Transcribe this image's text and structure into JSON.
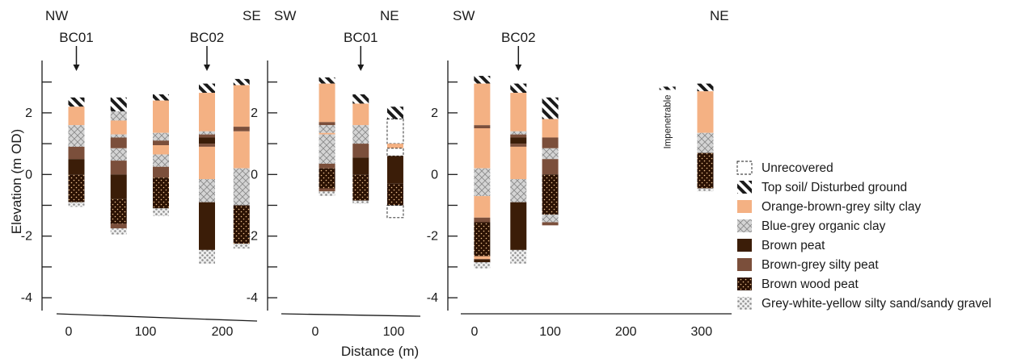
{
  "figure": {
    "y_axis_title": "Elevation (m OD)",
    "x_axis_title": "Distance (m)"
  },
  "colors": {
    "top_soil": "#222222",
    "silty_clay": "#f4b183",
    "organic_clay": "#d0d0d0",
    "brown_peat": "#3b1d08",
    "silty_peat": "#7b4f3b",
    "wood_peat": "#2b1204",
    "gravel": "#c8c8c8"
  },
  "legend": [
    {
      "key": "unrecovered",
      "label": "Unrecovered"
    },
    {
      "key": "top_soil",
      "label": "Top soil/ Disturbed ground"
    },
    {
      "key": "silty_clay",
      "label": "Orange-brown-grey silty clay"
    },
    {
      "key": "organic_clay",
      "label": "Blue-grey organic clay"
    },
    {
      "key": "brown_peat",
      "label": "Brown peat"
    },
    {
      "key": "silty_peat",
      "label": "Brown-grey silty peat"
    },
    {
      "key": "wood_peat",
      "label": "Brown wood peat"
    },
    {
      "key": "gravel",
      "label": "Grey-white-yellow silty sand/sandy gravel"
    }
  ],
  "panels": [
    {
      "left_label": "NW",
      "right_label": "SE",
      "y_tick_labels": [
        "2",
        "0",
        "-2",
        "-4"
      ],
      "x_tick_labels": [
        "0",
        "100",
        "200"
      ],
      "markers": [
        {
          "label": "BC01",
          "distance": 10
        },
        {
          "label": "BC02",
          "distance": 180
        }
      ],
      "columns": [
        {
          "distance": 10,
          "layers": [
            {
              "type": "top_soil",
              "top": 2.5,
              "bottom": 2.2
            },
            {
              "type": "silty_clay",
              "top": 2.2,
              "bottom": 1.6
            },
            {
              "type": "organic_clay",
              "top": 1.6,
              "bottom": 0.9
            },
            {
              "type": "silty_peat",
              "top": 0.9,
              "bottom": 0.5
            },
            {
              "type": "brown_peat",
              "top": 0.5,
              "bottom": 0.0
            },
            {
              "type": "wood_peat",
              "top": 0.0,
              "bottom": -0.9
            },
            {
              "type": "gravel",
              "top": -0.9,
              "bottom": -1.05
            }
          ]
        },
        {
          "distance": 65,
          "layers": [
            {
              "type": "top_soil",
              "top": 2.5,
              "bottom": 2.05
            },
            {
              "type": "organic_clay",
              "top": 2.05,
              "bottom": 1.75
            },
            {
              "type": "silty_clay",
              "top": 1.75,
              "bottom": 1.3
            },
            {
              "type": "organic_clay",
              "top": 1.3,
              "bottom": 1.2
            },
            {
              "type": "silty_peat",
              "top": 1.2,
              "bottom": 0.85
            },
            {
              "type": "organic_clay",
              "top": 0.85,
              "bottom": 0.45
            },
            {
              "type": "silty_peat",
              "top": 0.45,
              "bottom": 0.0
            },
            {
              "type": "brown_peat",
              "top": 0.0,
              "bottom": -0.8
            },
            {
              "type": "wood_peat",
              "top": -0.8,
              "bottom": -1.6
            },
            {
              "type": "silty_peat",
              "top": -1.6,
              "bottom": -1.75
            },
            {
              "type": "gravel",
              "top": -1.75,
              "bottom": -1.95
            }
          ]
        },
        {
          "distance": 120,
          "layers": [
            {
              "type": "top_soil",
              "top": 2.6,
              "bottom": 2.4
            },
            {
              "type": "silty_clay",
              "top": 2.4,
              "bottom": 1.35
            },
            {
              "type": "organic_clay",
              "top": 1.35,
              "bottom": 1.1
            },
            {
              "type": "silty_peat",
              "top": 1.1,
              "bottom": 0.95
            },
            {
              "type": "silty_clay",
              "top": 0.95,
              "bottom": 0.65
            },
            {
              "type": "organic_clay",
              "top": 0.65,
              "bottom": 0.25
            },
            {
              "type": "silty_peat",
              "top": 0.25,
              "bottom": -0.1
            },
            {
              "type": "wood_peat",
              "top": -0.1,
              "bottom": -1.1
            },
            {
              "type": "gravel",
              "top": -1.1,
              "bottom": -1.35
            }
          ]
        },
        {
          "distance": 180,
          "layers": [
            {
              "type": "top_soil",
              "top": 2.95,
              "bottom": 2.65
            },
            {
              "type": "silty_clay",
              "top": 2.65,
              "bottom": 1.4
            },
            {
              "type": "organic_clay",
              "top": 1.4,
              "bottom": 1.3
            },
            {
              "type": "silty_peat",
              "top": 1.3,
              "bottom": 1.2
            },
            {
              "type": "brown_peat",
              "top": 1.2,
              "bottom": 1.0
            },
            {
              "type": "silty_peat",
              "top": 1.0,
              "bottom": 0.9
            },
            {
              "type": "silty_clay",
              "top": 0.9,
              "bottom": -0.15
            },
            {
              "type": "organic_clay",
              "top": -0.15,
              "bottom": -0.9
            },
            {
              "type": "brown_peat",
              "top": -0.9,
              "bottom": -2.45
            },
            {
              "type": "gravel",
              "top": -2.45,
              "bottom": -2.9
            }
          ]
        },
        {
          "distance": 225,
          "layers": [
            {
              "type": "top_soil",
              "top": 3.1,
              "bottom": 2.9
            },
            {
              "type": "silty_clay",
              "top": 2.9,
              "bottom": 1.55
            },
            {
              "type": "silty_peat",
              "top": 1.55,
              "bottom": 1.4
            },
            {
              "type": "silty_clay",
              "top": 1.4,
              "bottom": 0.2
            },
            {
              "type": "organic_clay",
              "top": 0.2,
              "bottom": -1.0
            },
            {
              "type": "wood_peat",
              "top": -1.0,
              "bottom": -2.25
            },
            {
              "type": "gravel",
              "top": -2.25,
              "bottom": -2.4
            }
          ]
        }
      ]
    },
    {
      "left_label": "SW",
      "right_label": "NE",
      "y_tick_labels": [
        "2",
        "0",
        "-2",
        "-4"
      ],
      "x_tick_labels": [
        "0",
        "100"
      ],
      "markers": [
        {
          "label": "BC01",
          "distance": 58
        }
      ],
      "columns": [
        {
          "distance": 15,
          "layers": [
            {
              "type": "top_soil",
              "top": 3.15,
              "bottom": 2.95
            },
            {
              "type": "silty_clay",
              "top": 2.95,
              "bottom": 1.7
            },
            {
              "type": "silty_peat",
              "top": 1.7,
              "bottom": 1.6
            },
            {
              "type": "organic_clay",
              "top": 1.6,
              "bottom": 1.35
            },
            {
              "type": "silty_clay",
              "top": 1.35,
              "bottom": 1.3
            },
            {
              "type": "organic_clay",
              "top": 1.3,
              "bottom": 0.35
            },
            {
              "type": "silty_peat",
              "top": 0.35,
              "bottom": 0.2
            },
            {
              "type": "wood_peat",
              "top": 0.2,
              "bottom": -0.45
            },
            {
              "type": "silty_peat",
              "top": -0.45,
              "bottom": -0.55
            },
            {
              "type": "gravel",
              "top": -0.55,
              "bottom": -0.7
            }
          ]
        },
        {
          "distance": 58,
          "layers": [
            {
              "type": "top_soil",
              "top": 2.6,
              "bottom": 2.3
            },
            {
              "type": "silty_clay",
              "top": 2.3,
              "bottom": 1.6
            },
            {
              "type": "organic_clay",
              "top": 1.6,
              "bottom": 1.0
            },
            {
              "type": "silty_peat",
              "top": 1.0,
              "bottom": 0.55
            },
            {
              "type": "brown_peat",
              "top": 0.55,
              "bottom": 0.0
            },
            {
              "type": "wood_peat",
              "top": 0.0,
              "bottom": -0.85
            },
            {
              "type": "gravel",
              "top": -0.85,
              "bottom": -0.95
            }
          ]
        },
        {
          "distance": 102,
          "layers": [
            {
              "type": "top_soil",
              "top": 2.2,
              "bottom": 1.8
            },
            {
              "type": "unrecovered",
              "top": 1.8,
              "bottom": 1.0
            },
            {
              "type": "silty_clay",
              "top": 1.0,
              "bottom": 0.85
            },
            {
              "type": "unrecovered",
              "top": 0.85,
              "bottom": 0.6
            },
            {
              "type": "brown_peat",
              "top": 0.6,
              "bottom": -0.3
            },
            {
              "type": "wood_peat",
              "top": -0.3,
              "bottom": -1.0
            },
            {
              "type": "unrecovered",
              "top": -1.0,
              "bottom": -1.4
            }
          ]
        }
      ]
    },
    {
      "left_label": "SW",
      "right_label": "NE",
      "y_tick_labels": [
        "2",
        "0",
        "-2",
        "-4"
      ],
      "x_tick_labels": [
        "0",
        "100",
        "200",
        "300"
      ],
      "markers": [
        {
          "label": "BC02",
          "distance": 58
        }
      ],
      "impenetrable": {
        "label": "Impenetrable",
        "distance": 255,
        "top": 2.85
      },
      "columns": [
        {
          "distance": 10,
          "layers": [
            {
              "type": "top_soil",
              "top": 3.2,
              "bottom": 2.95
            },
            {
              "type": "silty_clay",
              "top": 2.95,
              "bottom": 1.6
            },
            {
              "type": "silty_peat",
              "top": 1.6,
              "bottom": 1.5
            },
            {
              "type": "silty_clay",
              "top": 1.5,
              "bottom": 0.2
            },
            {
              "type": "organic_clay",
              "top": 0.2,
              "bottom": -0.7
            },
            {
              "type": "silty_clay",
              "top": -0.7,
              "bottom": -1.4
            },
            {
              "type": "silty_peat",
              "top": -1.4,
              "bottom": -1.55
            },
            {
              "type": "wood_peat",
              "top": -1.55,
              "bottom": -2.65
            },
            {
              "type": "silty_clay",
              "top": -2.65,
              "bottom": -2.75
            },
            {
              "type": "brown_peat",
              "top": -2.75,
              "bottom": -2.85
            },
            {
              "type": "gravel",
              "top": -2.85,
              "bottom": -3.05
            }
          ]
        },
        {
          "distance": 58,
          "layers": [
            {
              "type": "top_soil",
              "top": 2.95,
              "bottom": 2.65
            },
            {
              "type": "silty_clay",
              "top": 2.65,
              "bottom": 1.4
            },
            {
              "type": "organic_clay",
              "top": 1.4,
              "bottom": 1.3
            },
            {
              "type": "silty_peat",
              "top": 1.3,
              "bottom": 1.2
            },
            {
              "type": "brown_peat",
              "top": 1.2,
              "bottom": 1.0
            },
            {
              "type": "silty_peat",
              "top": 1.0,
              "bottom": 0.9
            },
            {
              "type": "silty_clay",
              "top": 0.9,
              "bottom": -0.15
            },
            {
              "type": "organic_clay",
              "top": -0.15,
              "bottom": -0.9
            },
            {
              "type": "brown_peat",
              "top": -0.9,
              "bottom": -2.45
            },
            {
              "type": "gravel",
              "top": -2.45,
              "bottom": -2.9
            }
          ]
        },
        {
          "distance": 100,
          "layers": [
            {
              "type": "top_soil",
              "top": 2.5,
              "bottom": 1.8
            },
            {
              "type": "silty_clay",
              "top": 1.8,
              "bottom": 1.2
            },
            {
              "type": "silty_peat",
              "top": 1.2,
              "bottom": 0.85
            },
            {
              "type": "organic_clay",
              "top": 0.85,
              "bottom": 0.5
            },
            {
              "type": "silty_peat",
              "top": 0.5,
              "bottom": 0.0
            },
            {
              "type": "wood_peat",
              "top": 0.0,
              "bottom": -1.3
            },
            {
              "type": "organic_clay",
              "top": -1.3,
              "bottom": -1.55
            },
            {
              "type": "silty_peat",
              "top": -1.55,
              "bottom": -1.65
            }
          ]
        },
        {
          "distance": 305,
          "layers": [
            {
              "type": "top_soil",
              "top": 2.95,
              "bottom": 2.7
            },
            {
              "type": "silty_clay",
              "top": 2.7,
              "bottom": 1.35
            },
            {
              "type": "organic_clay",
              "top": 1.35,
              "bottom": 0.7
            },
            {
              "type": "wood_peat",
              "top": 0.7,
              "bottom": -0.45
            },
            {
              "type": "gravel",
              "top": -0.45,
              "bottom": -0.55
            }
          ]
        }
      ]
    }
  ]
}
